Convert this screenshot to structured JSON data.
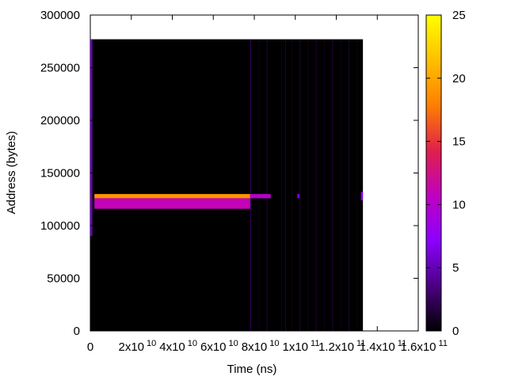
{
  "chart_data": {
    "type": "heatmap",
    "xlabel": "Time (ns)",
    "ylabel": "Address (bytes)",
    "xlim": [
      0,
      160000000000
    ],
    "ylim": [
      0,
      300000
    ],
    "x_tick_labels": [
      {
        "value": 0,
        "text": "0",
        "sup": ""
      },
      {
        "value": 20000000000,
        "text": "2x10",
        "sup": "10"
      },
      {
        "value": 40000000000,
        "text": "4x10",
        "sup": "10"
      },
      {
        "value": 60000000000,
        "text": "6x10",
        "sup": "10"
      },
      {
        "value": 80000000000,
        "text": "8x10",
        "sup": "10"
      },
      {
        "value": 100000000000,
        "text": "1x10",
        "sup": "11"
      },
      {
        "value": 120000000000,
        "text": "1.2x10",
        "sup": "11"
      },
      {
        "value": 140000000000,
        "text": "1.4x10",
        "sup": "11"
      },
      {
        "value": 160000000000,
        "text": "1.6x10",
        "sup": "11"
      }
    ],
    "y_tick_labels": [
      "0",
      "50000",
      "100000",
      "150000",
      "200000",
      "250000",
      "300000"
    ],
    "y_ticks": [
      0,
      50000,
      100000,
      150000,
      200000,
      250000,
      300000
    ],
    "colorbar": {
      "range": [
        0,
        25
      ],
      "ticks": [
        0,
        5,
        10,
        15,
        20,
        25
      ],
      "tick_labels": [
        "0",
        "5",
        "10",
        "15",
        "20",
        "25"
      ],
      "palette": [
        "#000000",
        "#4b0082",
        "#8b00ff",
        "#c000c0",
        "#e0204a",
        "#ff7f00",
        "#ffc000",
        "#ffff00"
      ]
    },
    "grid": false,
    "data_extent": {
      "x": [
        0,
        133000000000
      ],
      "y": [
        0,
        277000
      ]
    },
    "cells": [
      {
        "x0": 2000000000,
        "x1": 78000000000,
        "y0": 126000,
        "y1": 130000,
        "value": 19
      },
      {
        "x0": 2000000000,
        "x1": 78000000000,
        "y0": 116000,
        "y1": 126000,
        "value": 11
      },
      {
        "x0": 78000000000,
        "x1": 88000000000,
        "y0": 126000,
        "y1": 130000,
        "value": 10
      },
      {
        "x0": 0,
        "x1": 1000000000,
        "y0": 90000,
        "y1": 277000,
        "value": 5
      },
      {
        "x0": 132000000000,
        "x1": 133000000000,
        "y0": 124000,
        "y1": 132000,
        "value": 7
      },
      {
        "x0": 101000000000,
        "x1": 102000000000,
        "y0": 126000,
        "y1": 130000,
        "value": 7
      }
    ],
    "faint_columns": [
      {
        "x": 78000000000,
        "value": 3
      },
      {
        "x": 82000000000,
        "value": 1
      },
      {
        "x": 86000000000,
        "value": 2
      },
      {
        "x": 93000000000,
        "value": 1
      },
      {
        "x": 95000000000,
        "value": 2
      },
      {
        "x": 98000000000,
        "value": 1
      },
      {
        "x": 102000000000,
        "value": 2
      },
      {
        "x": 106000000000,
        "value": 1
      },
      {
        "x": 110000000000,
        "value": 2
      },
      {
        "x": 114000000000,
        "value": 1
      },
      {
        "x": 118000000000,
        "value": 2
      },
      {
        "x": 122000000000,
        "value": 1
      },
      {
        "x": 126000000000,
        "value": 2
      },
      {
        "x": 130000000000,
        "value": 1
      }
    ]
  }
}
